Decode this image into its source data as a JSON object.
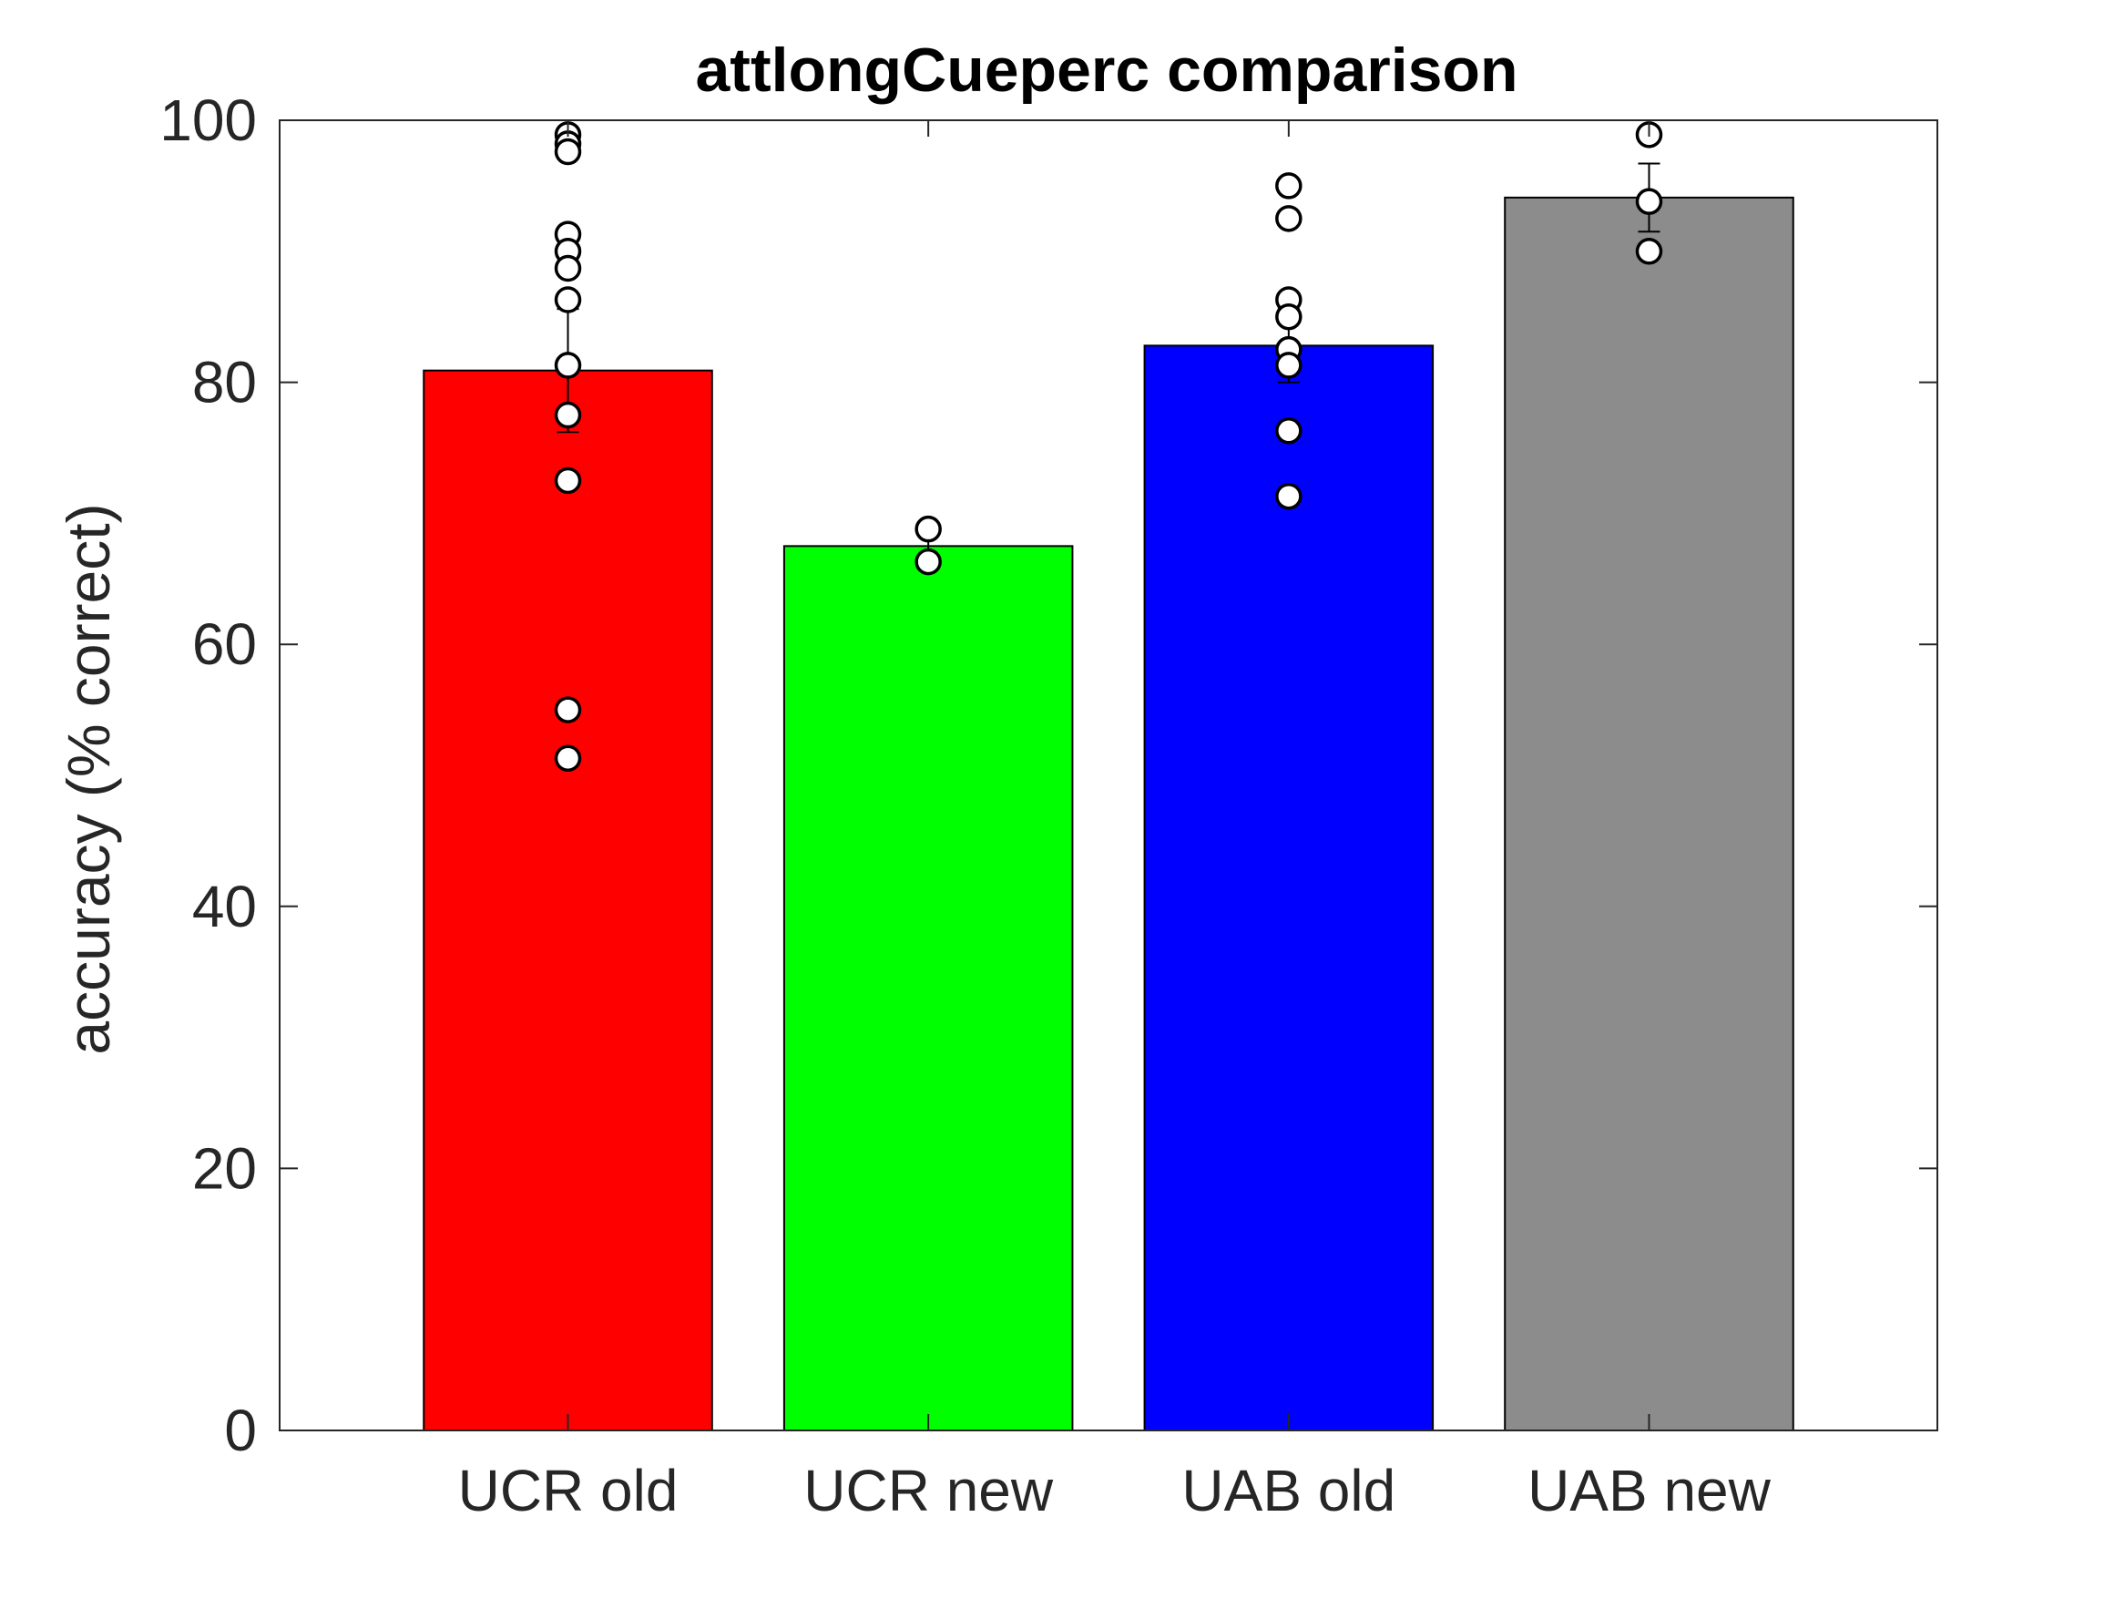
{
  "chart_data": {
    "type": "bar",
    "title": "attlongCueperc comparison",
    "xlabel": "",
    "ylabel": "accuracy (% correct)",
    "ylim": [
      0,
      100
    ],
    "yticks": [
      0,
      20,
      40,
      60,
      80,
      100
    ],
    "grid": false,
    "categories": [
      "UCR old",
      "UCR new",
      "UAB old",
      "UAB new"
    ],
    "values": [
      80.9,
      67.5,
      82.8,
      94.1
    ],
    "colors": [
      "#ff0000",
      "#00ff00",
      "#0000ff",
      "#8c8c8c"
    ],
    "error_bars": [
      {
        "low": 76.2,
        "high": 85.6
      },
      {
        "low": 66.3,
        "high": 68.7
      },
      {
        "low": 80.0,
        "high": 85.6
      },
      {
        "low": 91.5,
        "high": 96.7
      }
    ],
    "points": [
      [
        98.9,
        98.2,
        97.6,
        91.3,
        90.0,
        88.7,
        86.3,
        81.3,
        77.5,
        72.5,
        55.0,
        51.3
      ],
      [
        68.8,
        66.3
      ],
      [
        95.0,
        92.5,
        86.3,
        85.0,
        82.5,
        81.3,
        76.3,
        71.3
      ],
      [
        98.9,
        93.8,
        90.0
      ]
    ]
  }
}
